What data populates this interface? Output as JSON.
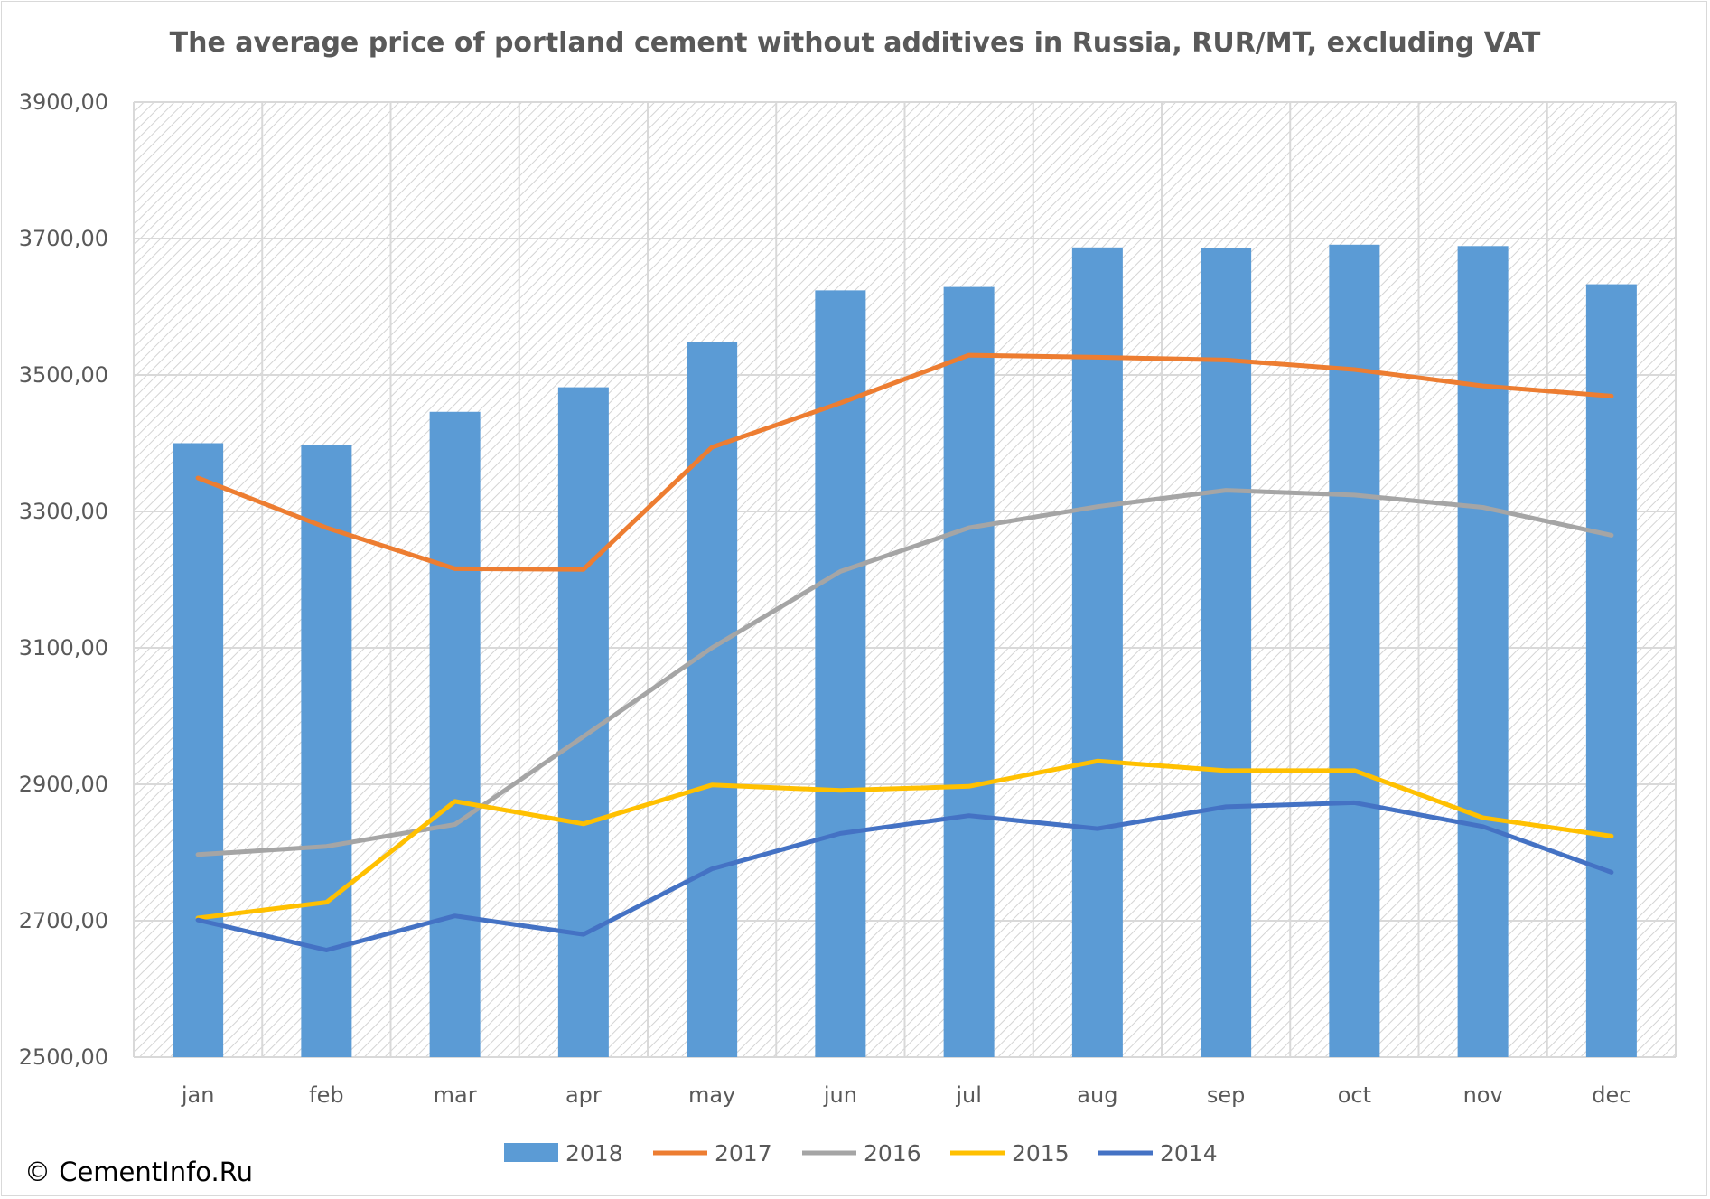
{
  "chart_data": {
    "type": "bar",
    "title": "The average price of portland cement without additives in Russia, RUR/MT, excluding VAT",
    "xlabel": "",
    "ylabel": "",
    "ylim": [
      2500,
      3900
    ],
    "y_ticks": [
      "2500,00",
      "2700,00",
      "2900,00",
      "3100,00",
      "3300,00",
      "3500,00",
      "3700,00",
      "3900,00"
    ],
    "y_tick_values": [
      2500,
      2700,
      2900,
      3100,
      3300,
      3500,
      3700,
      3900
    ],
    "categories": [
      "jan",
      "feb",
      "mar",
      "apr",
      "may",
      "jun",
      "jul",
      "aug",
      "sep",
      "oct",
      "nov",
      "dec"
    ],
    "grid": true,
    "legend_position": "bottom",
    "series": [
      {
        "name": "2018",
        "kind": "bar",
        "color": "#5b9bd5",
        "values": [
          3400,
          3398,
          3446,
          3482,
          3548,
          3624,
          3629,
          3687,
          3686,
          3691,
          3689,
          3633
        ]
      },
      {
        "name": "2017",
        "kind": "line",
        "color": "#ed7d31",
        "values": [
          3349,
          3276,
          3216,
          3215,
          3394,
          3459,
          3529,
          3526,
          3522,
          3508,
          3484,
          3469
        ]
      },
      {
        "name": "2016",
        "kind": "line",
        "color": "#a5a5a5",
        "values": [
          2797,
          2809,
          2841,
          2970,
          3100,
          3212,
          3276,
          3307,
          3331,
          3324,
          3306,
          3265
        ]
      },
      {
        "name": "2015",
        "kind": "line",
        "color": "#ffc000",
        "values": [
          2704,
          2727,
          2875,
          2842,
          2899,
          2891,
          2897,
          2934,
          2920,
          2920,
          2851,
          2824
        ]
      },
      {
        "name": "2014",
        "kind": "line",
        "color": "#4472c4",
        "values": [
          2701,
          2657,
          2707,
          2680,
          2776,
          2828,
          2854,
          2835,
          2867,
          2873,
          2838,
          2771
        ]
      }
    ]
  },
  "copyright": "© CementInfo.Ru"
}
